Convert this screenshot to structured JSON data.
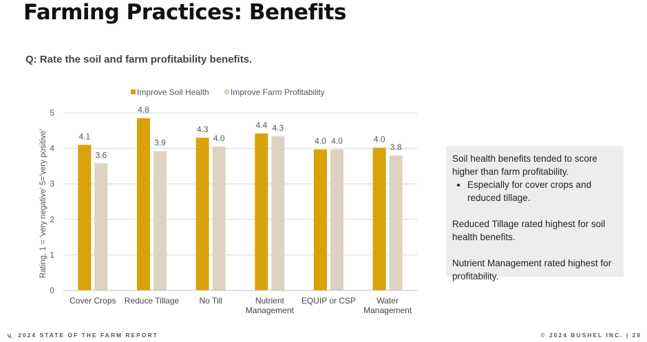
{
  "slide": {
    "title": "Farming Practices: Benefits",
    "question": "Q: Rate the soil and farm profitability benefits."
  },
  "chart_data": {
    "type": "bar",
    "ylabel": "Rating, 1 = 'very negative' 5='very positive'",
    "ylim": [
      0,
      5
    ],
    "yticks": [
      0,
      1,
      2,
      3,
      4,
      5
    ],
    "grid": true,
    "legend_position": "top",
    "categories": [
      [
        "Cover Crops"
      ],
      [
        "Reduce Tillage"
      ],
      [
        "No Till"
      ],
      [
        "Nutrient",
        "Management"
      ],
      [
        "EQUIP or CSP"
      ],
      [
        "Water",
        "Management"
      ]
    ],
    "series": [
      {
        "name": "Improve Soil Health",
        "color": "#D9A20B",
        "values": [
          4.1,
          4.85,
          4.3,
          4.42,
          3.97,
          4.02
        ],
        "labels": [
          "4.1",
          "4.8",
          "4.3",
          "4.4",
          "4.0",
          "4.0"
        ]
      },
      {
        "name": "Improve Farm Profitability",
        "color": "#DDD3C0",
        "values": [
          3.58,
          3.92,
          4.05,
          4.34,
          3.97,
          3.8
        ],
        "labels": [
          "3.6",
          "3.9",
          "4.0",
          "4.3",
          "4.0",
          "3.8"
        ]
      }
    ]
  },
  "note": {
    "p1": "Soil health benefits tended to score higher than farm profitability.",
    "bullet1": "Especially for cover crops and reduced tillage.",
    "p2": "Reduced Tillage rated highest for soil health benefits.",
    "p3": "Nutrient Management rated highest for profitability."
  },
  "footer": {
    "left": "2024 STATE OF THE FARM REPORT",
    "right": "© 2024 BUSHEL INC.  |  28"
  }
}
